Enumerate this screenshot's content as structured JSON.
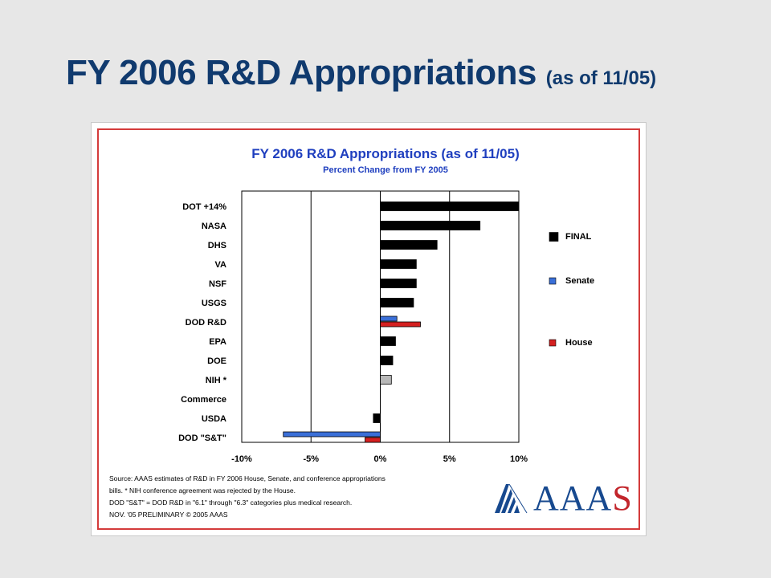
{
  "slide": {
    "title_main": "FY 2006 R&D Appropriations",
    "title_note": "(as of 11/05)"
  },
  "chart_data": {
    "type": "bar",
    "orientation": "horizontal",
    "title": "FY 2006 R&D Appropriations (as of 11/05)",
    "subtitle": "Percent Change from FY 2005",
    "categories": [
      "DOT +14%",
      "NASA",
      "DHS",
      "VA",
      "NSF",
      "USGS",
      "DOD R&D",
      "EPA",
      "DOE",
      "NIH *",
      "Commerce",
      "USDA",
      "DOD \"S&T\""
    ],
    "series": [
      {
        "name": "FINAL",
        "color": "#000000",
        "values": [
          10,
          7.2,
          4.1,
          2.6,
          2.6,
          2.4,
          null,
          1.1,
          0.9,
          0.8,
          0,
          -0.5,
          null
        ]
      },
      {
        "name": "Senate",
        "color": "#3a6fd8",
        "values": [
          null,
          null,
          null,
          null,
          null,
          null,
          1.2,
          null,
          null,
          null,
          null,
          null,
          -7
        ]
      },
      {
        "name": "House",
        "color": "#d42020",
        "values": [
          null,
          null,
          null,
          null,
          null,
          null,
          2.9,
          null,
          null,
          null,
          null,
          null,
          -1.1
        ]
      }
    ],
    "special_bars": [
      {
        "category": "NIH *",
        "color": "#b8b8b8"
      }
    ],
    "xlim": [
      -10,
      10
    ],
    "xticks": [
      "-10%",
      "-5%",
      "0%",
      "5%",
      "10%"
    ],
    "xlabel": "",
    "ylabel": "",
    "grid": "vertical",
    "legend_position": "right",
    "notes": [
      "Source: AAAS estimates of R&D in FY 2006 House, Senate, and conference appropriations",
      "bills. * NIH conference agreement was rejected by the House.",
      "DOD \"S&T\" = DOD R&D in \"6.1\" through \"6.3\" categories plus medical research.",
      "NOV. '05 PRELIMINARY © 2005  AAAS"
    ]
  },
  "logo": {
    "text_main": "AAA",
    "text_end": "S"
  }
}
